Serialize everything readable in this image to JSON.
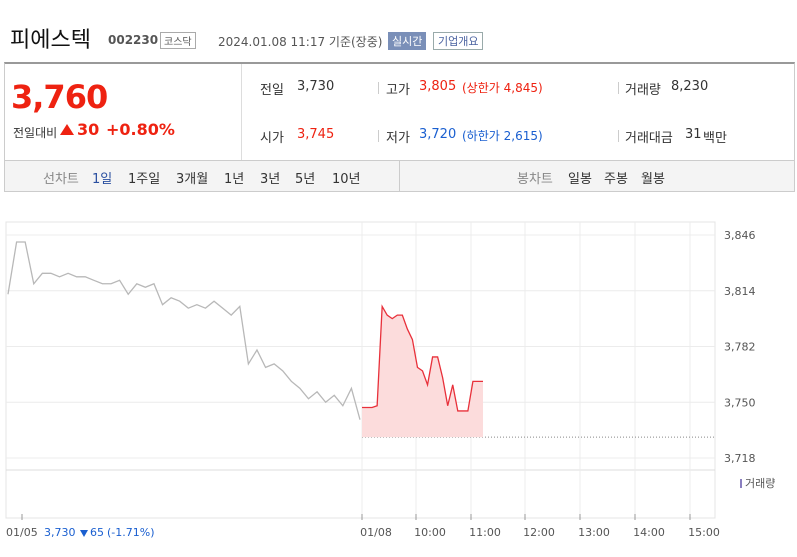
{
  "header": {
    "name": "피에스텍",
    "code": "002230",
    "market": "코스닥",
    "datetime": "2024.01.08 11:17 기준(장중)",
    "realtime": "실시간",
    "company": "기업개요"
  },
  "price": {
    "current": "3,760",
    "change_label": "전일대비",
    "change": "30",
    "rate": "+0.80%"
  },
  "info": {
    "prev_label": "전일",
    "prev": "3,730",
    "high_label": "고가",
    "high": "3,805",
    "upper_limit": "(상한가 4,845)",
    "volume_label": "거래량",
    "volume": "8,230",
    "open_label": "시가",
    "open": "3,745",
    "low_label": "저가",
    "low": "3,720",
    "lower_limit": "(하한가 2,615)",
    "amount_label": "거래대금",
    "amount": "31",
    "amount_unit": "백만"
  },
  "tabs": {
    "line_label": "선차트",
    "line": [
      "1일",
      "1주일",
      "3개월",
      "1년",
      "3년",
      "5년",
      "10년"
    ],
    "candle_label": "봉차트",
    "candle": [
      "일봉",
      "주봉",
      "월봉"
    ]
  },
  "footer": {
    "date": "01/05",
    "price": "3,730",
    "change": "65",
    "rate": "(-1.71%)"
  },
  "chart_data": {
    "type": "line",
    "volume_label": "거래량",
    "x_labels": [
      "01/08",
      "10:00",
      "11:00",
      "12:00",
      "13:00",
      "14:00",
      "15:00"
    ],
    "ylim": [
      3718,
      3846
    ],
    "yticks": [
      {
        "value": 3718,
        "label": "3,718"
      },
      {
        "value": 3750,
        "label": "3,750"
      },
      {
        "value": 3782,
        "label": "3,782"
      },
      {
        "value": 3814,
        "label": "3,814"
      },
      {
        "value": 3846,
        "label": "3,846"
      }
    ],
    "reference_line": 3730,
    "grid": true,
    "series": [
      {
        "color": "#b8b8b8",
        "values": [
          3812,
          3842,
          3842,
          3818,
          3824,
          3824,
          3822,
          3824,
          3822,
          3822,
          3820,
          3818,
          3818,
          3820,
          3812,
          3818,
          3816,
          3818,
          3806,
          3810,
          3808,
          3804,
          3806,
          3804,
          3808,
          3804,
          3800,
          3805,
          3772,
          3780,
          3770,
          3772,
          3768,
          3762,
          3758,
          3752,
          3756,
          3750,
          3754,
          3748,
          3758,
          3740
        ]
      },
      {
        "color": "#e8303a",
        "values": [
          3747,
          3747,
          3747,
          3748,
          3805,
          3800,
          3798,
          3800,
          3800,
          3792,
          3786,
          3770,
          3768,
          3760,
          3776,
          3776,
          3764,
          3748,
          3760,
          3745,
          3745,
          3745,
          3762,
          3762,
          3762
        ]
      }
    ]
  }
}
